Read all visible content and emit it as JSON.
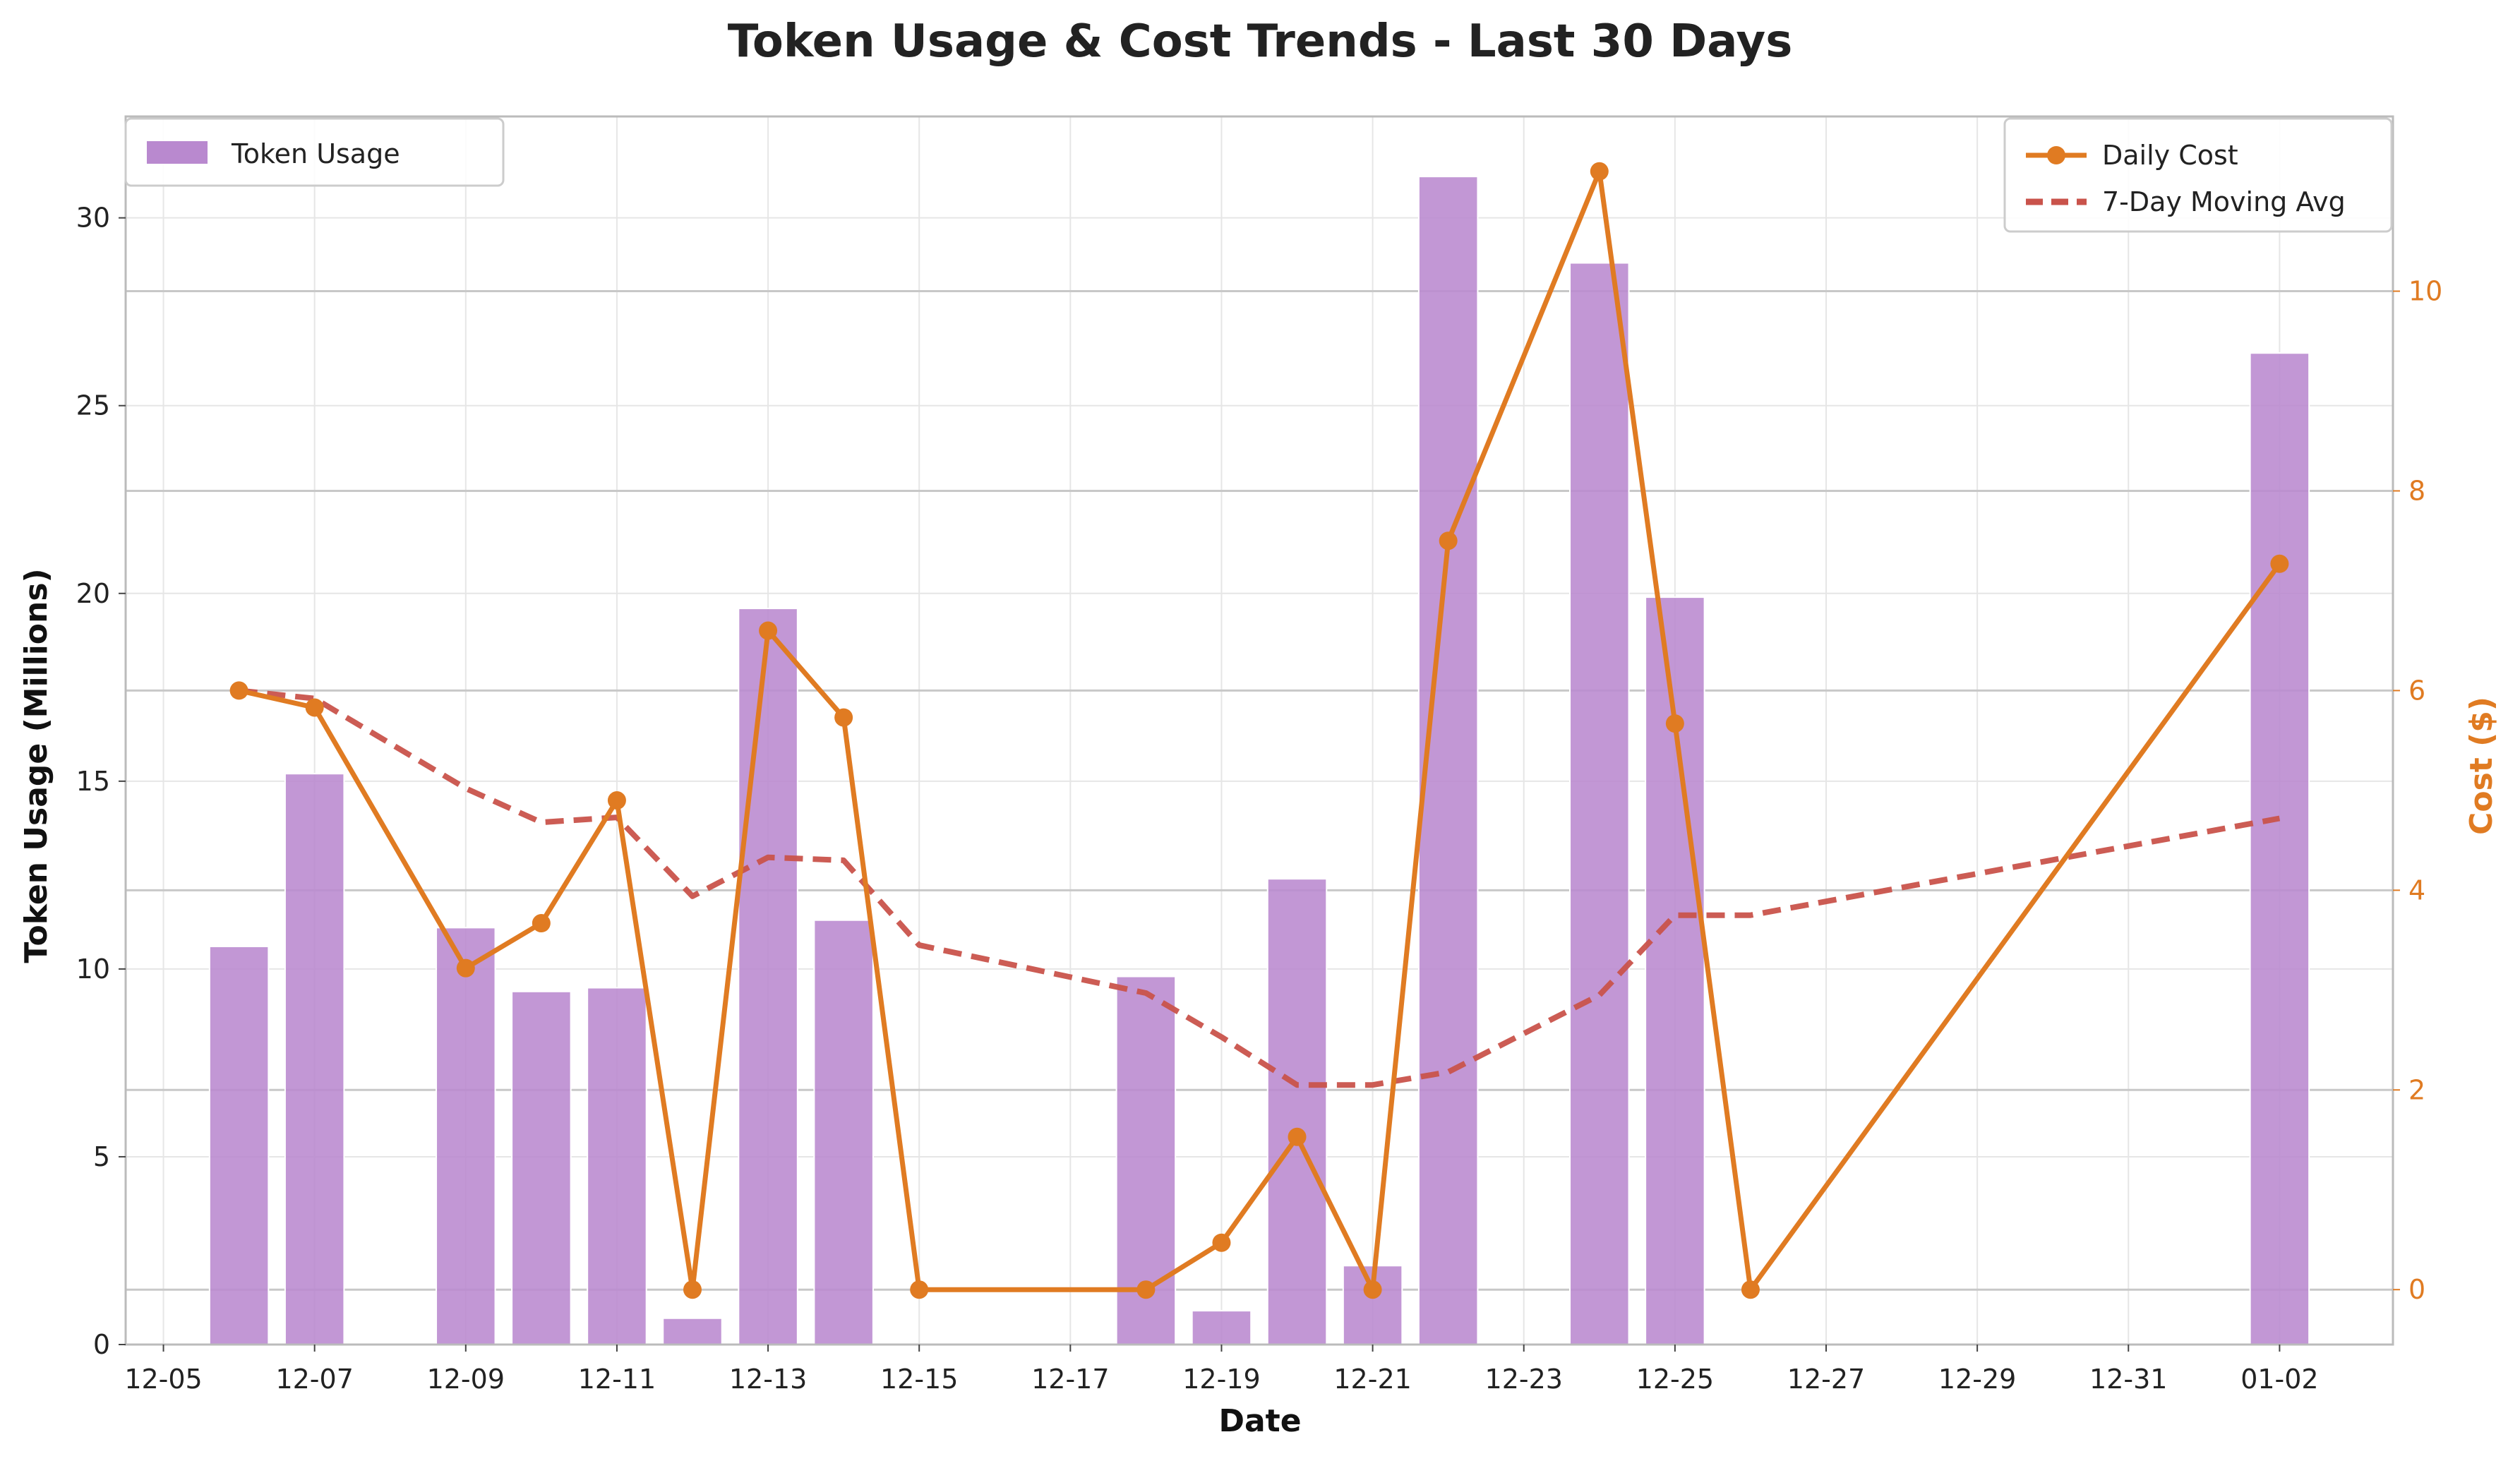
{
  "chart_data": {
    "type": "bar",
    "title": "Token Usage & Cost Trends - Last 30 Days",
    "xlabel": "Date",
    "ylabel": "Token Usage (Millions)",
    "ylabel_right": "Cost ($)",
    "ylim": [
      0,
      32.7
    ],
    "ylim_right": [
      -0.55,
      11.75
    ],
    "xlim": [
      "12-04 12:00",
      "01-03 12:00"
    ],
    "grid": true,
    "x_ticks": [
      "12-05",
      "12-07",
      "12-09",
      "12-11",
      "12-13",
      "12-15",
      "12-17",
      "12-19",
      "12-21",
      "12-23",
      "12-25",
      "12-27",
      "12-29",
      "12-31",
      "01-02"
    ],
    "y_ticks": [
      0,
      5,
      10,
      15,
      20,
      25,
      30
    ],
    "y_ticks_right": [
      0,
      2,
      4,
      6,
      8,
      10
    ],
    "bars": {
      "name": "Token Usage",
      "color": "#B989CF",
      "legend_position": "top-left",
      "points": [
        {
          "x": "12-06",
          "y": 10.6
        },
        {
          "x": "12-07",
          "y": 15.2
        },
        {
          "x": "12-09",
          "y": 11.1
        },
        {
          "x": "12-10",
          "y": 9.4
        },
        {
          "x": "12-11",
          "y": 9.5
        },
        {
          "x": "12-12",
          "y": 0.7
        },
        {
          "x": "12-13",
          "y": 19.6
        },
        {
          "x": "12-14",
          "y": 11.3
        },
        {
          "x": "12-18",
          "y": 9.8
        },
        {
          "x": "12-19",
          "y": 0.9
        },
        {
          "x": "12-20",
          "y": 12.4
        },
        {
          "x": "12-21",
          "y": 2.1
        },
        {
          "x": "12-22",
          "y": 31.1
        },
        {
          "x": "12-24",
          "y": 28.8
        },
        {
          "x": "12-25",
          "y": 19.9
        },
        {
          "x": "01-02",
          "y": 26.4
        }
      ]
    },
    "series": [
      {
        "name": "Daily Cost",
        "axis": "right",
        "style": "line-with-markers",
        "color": "#E07B22",
        "legend_position": "top-right",
        "points": [
          {
            "x": "12-06",
            "y": 6.0
          },
          {
            "x": "12-07",
            "y": 5.83
          },
          {
            "x": "12-09",
            "y": 3.22
          },
          {
            "x": "12-10",
            "y": 3.67
          },
          {
            "x": "12-11",
            "y": 4.9
          },
          {
            "x": "12-12",
            "y": 0.0
          },
          {
            "x": "12-13",
            "y": 6.6
          },
          {
            "x": "12-14",
            "y": 5.73
          },
          {
            "x": "12-15",
            "y": 0.0
          },
          {
            "x": "12-18",
            "y": 0.0
          },
          {
            "x": "12-19",
            "y": 0.47
          },
          {
            "x": "12-20",
            "y": 1.53
          },
          {
            "x": "12-21",
            "y": 0.0
          },
          {
            "x": "12-22",
            "y": 7.5
          },
          {
            "x": "12-24",
            "y": 11.2
          },
          {
            "x": "12-25",
            "y": 5.67
          },
          {
            "x": "12-26",
            "y": 0.0
          },
          {
            "x": "01-02",
            "y": 7.27
          }
        ]
      },
      {
        "name": "7-Day Moving Avg",
        "axis": "right",
        "style": "dashed",
        "color": "#C9534B",
        "legend_position": "top-right",
        "points": [
          {
            "x": "12-06",
            "y": 6.0
          },
          {
            "x": "12-07",
            "y": 5.92
          },
          {
            "x": "12-09",
            "y": 5.02
          },
          {
            "x": "12-10",
            "y": 4.68
          },
          {
            "x": "12-11",
            "y": 4.73
          },
          {
            "x": "12-12",
            "y": 3.94
          },
          {
            "x": "12-13",
            "y": 4.33
          },
          {
            "x": "12-14",
            "y": 4.3
          },
          {
            "x": "12-15",
            "y": 3.45
          },
          {
            "x": "12-18",
            "y": 2.97
          },
          {
            "x": "12-19",
            "y": 2.53
          },
          {
            "x": "12-20",
            "y": 2.05
          },
          {
            "x": "12-21",
            "y": 2.05
          },
          {
            "x": "12-22",
            "y": 2.18
          },
          {
            "x": "12-24",
            "y": 2.95
          },
          {
            "x": "12-25",
            "y": 3.75
          },
          {
            "x": "12-26",
            "y": 3.75
          },
          {
            "x": "01-02",
            "y": 4.72
          }
        ]
      }
    ]
  }
}
